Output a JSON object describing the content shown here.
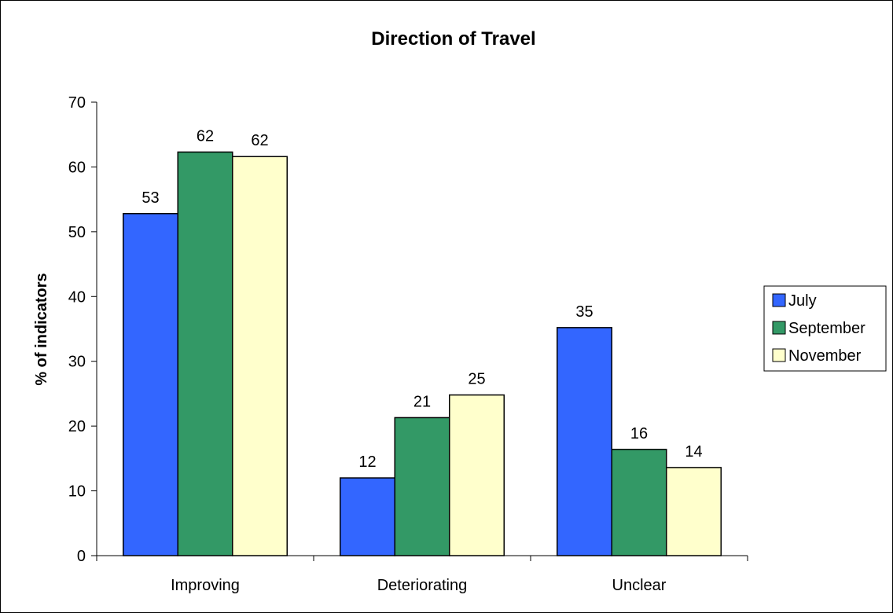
{
  "chart_data": {
    "type": "bar",
    "title": "Direction of Travel",
    "xlabel": "",
    "ylabel": "% of indicators",
    "ylim": [
      0,
      70
    ],
    "yticks": [
      0,
      10,
      20,
      30,
      40,
      50,
      60,
      70
    ],
    "categories": [
      "Improving",
      "Deteriorating",
      "Unclear"
    ],
    "series": [
      {
        "name": "July",
        "values": [
          52.8,
          12.0,
          35.2
        ],
        "labels": [
          "53",
          "12",
          "35"
        ],
        "color": "#3366FF"
      },
      {
        "name": "September",
        "values": [
          62.3,
          21.3,
          16.4
        ],
        "labels": [
          "62",
          "21",
          "16"
        ],
        "color": "#339966"
      },
      {
        "name": "November",
        "values": [
          61.6,
          24.8,
          13.6
        ],
        "labels": [
          "62",
          "25",
          "14"
        ],
        "color": "#FFFFCC"
      }
    ],
    "grid": false,
    "legend_position": "right"
  }
}
